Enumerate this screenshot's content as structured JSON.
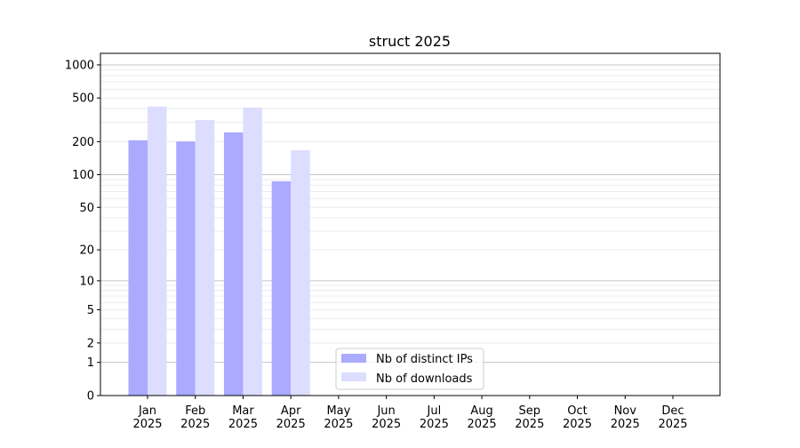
{
  "chart_data": {
    "type": "bar",
    "title": "struct 2025",
    "xlabel": "",
    "ylabel": "",
    "yscale": "log(y+1)",
    "ylim": [
      0,
      1300
    ],
    "yticks": [
      0,
      1,
      2,
      5,
      10,
      20,
      50,
      100,
      200,
      500,
      1000
    ],
    "grid": true,
    "legend_position": "bottom-center",
    "categories": [
      "Jan\n2025",
      "Feb\n2025",
      "Mar\n2025",
      "Apr\n2025",
      "May\n2025",
      "Jun\n2025",
      "Jul\n2025",
      "Aug\n2025",
      "Sep\n2025",
      "Oct\n2025",
      "Nov\n2025",
      "Dec\n2025"
    ],
    "series": [
      {
        "name": "Nb of distinct IPs",
        "color": "#aaaaff",
        "values": [
          206,
          201,
          243,
          87,
          0,
          0,
          0,
          0,
          0,
          0,
          0,
          0
        ]
      },
      {
        "name": "Nb of downloads",
        "color": "#ddddff",
        "values": [
          418,
          315,
          409,
          167,
          0,
          0,
          0,
          0,
          0,
          0,
          0,
          0
        ]
      }
    ]
  }
}
